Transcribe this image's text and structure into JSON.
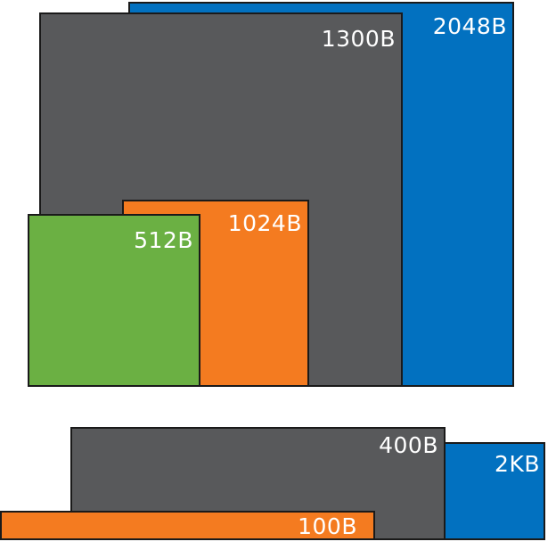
{
  "colors": {
    "blue": "#0271c0",
    "gray": "#58595b",
    "orange": "#f47b20",
    "green": "#6bb043",
    "border": "#1a1a1a",
    "label": "#ffffff"
  },
  "top_group": {
    "box_2048": {
      "label": "2048B",
      "color": "blue"
    },
    "box_1300": {
      "label": "1300B",
      "color": "gray"
    },
    "box_1024": {
      "label": "1024B",
      "color": "orange"
    },
    "box_512": {
      "label": "512B",
      "color": "green"
    }
  },
  "bottom_group": {
    "box_2kb": {
      "label": "2KB",
      "color": "blue"
    },
    "box_400": {
      "label": "400B",
      "color": "gray"
    },
    "box_100": {
      "label": "100B",
      "color": "orange"
    }
  }
}
